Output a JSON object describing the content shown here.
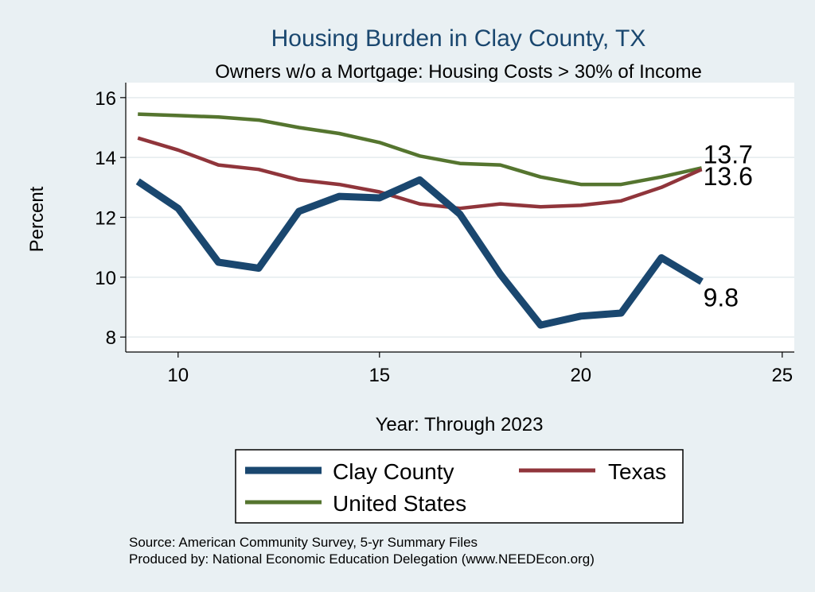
{
  "chart_data": {
    "type": "line",
    "title": "Housing Burden in Clay County, TX",
    "subtitle": "Owners w/o a Mortgage: Housing Costs > 30% of Income",
    "xlabel": "Year: Through 2023",
    "ylabel": "Percent",
    "xlim": [
      8.7,
      25.3
    ],
    "ylim": [
      7.5,
      16.5
    ],
    "x_ticks": [
      10,
      15,
      20,
      25
    ],
    "y_ticks": [
      8,
      10,
      12,
      14,
      16
    ],
    "grid": true,
    "legend_position": "bottom",
    "x": [
      9,
      10,
      11,
      12,
      13,
      14,
      15,
      16,
      17,
      18,
      19,
      20,
      21,
      22,
      23
    ],
    "series": [
      {
        "name": "Clay County",
        "color": "#1a476f",
        "values": [
          13.2,
          12.3,
          10.5,
          10.3,
          12.2,
          12.7,
          12.65,
          13.25,
          12.1,
          10.1,
          8.4,
          8.7,
          8.8,
          10.65,
          9.85
        ],
        "end_label": "9.8"
      },
      {
        "name": "Texas",
        "color": "#90353b",
        "values": [
          14.65,
          14.25,
          13.75,
          13.6,
          13.25,
          13.1,
          12.85,
          12.45,
          12.3,
          12.45,
          12.35,
          12.4,
          12.55,
          13.0,
          13.6
        ],
        "end_label": "13.6"
      },
      {
        "name": "United States",
        "color": "#55752f",
        "values": [
          15.45,
          15.4,
          15.35,
          15.25,
          15.0,
          14.8,
          14.5,
          14.05,
          13.8,
          13.75,
          13.35,
          13.1,
          13.1,
          13.35,
          13.65
        ],
        "end_label": "13.7"
      }
    ]
  },
  "footer": {
    "source": "Source: American Community Survey, 5-yr Summary Files",
    "produced": "Produced by: National Economic Education Delegation (www.NEEDEcon.org)"
  }
}
